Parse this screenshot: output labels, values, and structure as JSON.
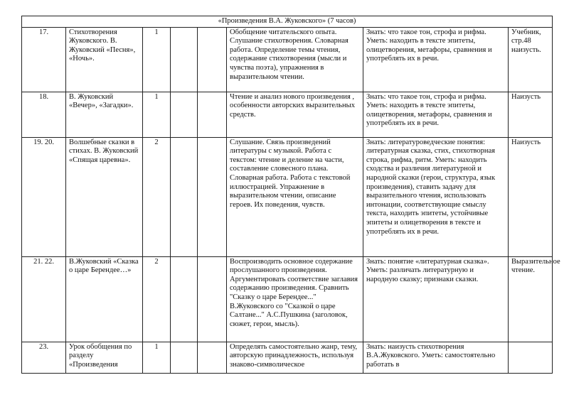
{
  "section_title": "«Произведения В.А. Жуковского» (7 часов)",
  "rows": [
    {
      "num": "17.",
      "topic": "Стихотворения Жуковского. В. Жуковский «Песня», «Ночь».",
      "hours": "1",
      "activity": "Обобщение читательского опыта. Слушание стихотворения. Словарная работа. Определение темы чтения, содержание стихотворения (мысли и чувства поэта), упражнения в выразительном чтении.",
      "skills": "Знать: что такое тон, строфа и рифма. Уметь: находить в тексте эпитеты, олицетворения, метафоры, сравнения и употреблять их в речи.",
      "homework": "Учебник, стр.48 наизусть."
    },
    {
      "num": "18.",
      "topic": "В. Жуковский «Вечер», «Загадки».",
      "hours": "1",
      "activity": "Чтение и анализ нового произведения , особенности авторских выразительных средств.",
      "skills": "Знать: что такое тон, строфа и рифма. Уметь: находить в тексте эпитеты, олицетворения, метафоры, сравнения и употреблять их в речи.",
      "homework": "Наизусть"
    },
    {
      "num": "19. 20.",
      "topic": "Волшебные сказки в стихах. В. Жуковский «Спящая царевна».",
      "hours": "2",
      "activity": "Слушание. Связь произведений литературы с музыкой. Работа с текстом: чтение и деление на части, составление словесного плана. Словарная работа. Работа с текстовой иллюстрацией. Упражнение в выразительном чтении, описание героев. Их поведения, чувств.",
      "skills": "Знать: литературоведческие понятия: литературная сказка, стих, стихотворная строка, рифма, ритм. Уметь: находить сходства и различия литературной и народной сказки (герои, структура, язык произведения), ставить задачу для выразительного чтения, использовать интонации, соответствующие смыслу текста, находить эпитеты, устойчивые эпитеты и олицетворения в тексте и употреблять их в речи.",
      "homework": "Наизусть"
    },
    {
      "num": "21. 22.",
      "topic": "В.Жуковский «Сказка о царе Берендее…»",
      "hours": "2",
      "activity": "Воспроизводить основное содержание прослушанного произведения. Аргументировать соответствие заглавия содержанию произведения. Сравнить \"Сказку о царе Берендее...\" В.Жуковского со \"Сказкой о царе Салтане...\" А.С.Пушкина (заголовок, сюжет, герои, мысль).",
      "skills": "Знать: понятие «литературная сказка». Уметь: различать литературную и народную сказку; признаки сказки.",
      "homework": "Выразительное чтение."
    },
    {
      "num": "23.",
      "topic": "Урок обобщения по разделу «Произведения",
      "hours": "1",
      "activity": "Определять самостоятельно жанр, тему, авторскую принадлежность, используя знаково-символическое",
      "skills": "Знать: наизусть стихотворения В.А.Жуковского. Уметь: самостоятельно работать в",
      "homework": ""
    }
  ]
}
